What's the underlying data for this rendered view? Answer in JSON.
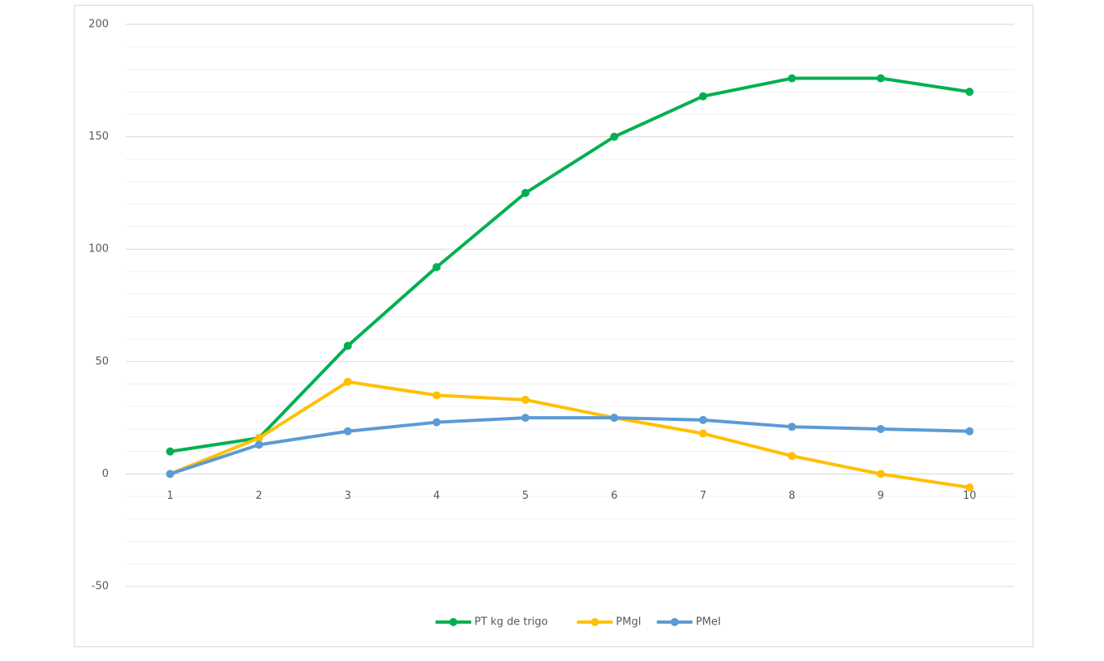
{
  "chart_data": {
    "type": "line",
    "categories": [
      "1",
      "2",
      "3",
      "4",
      "5",
      "6",
      "7",
      "8",
      "9",
      "10"
    ],
    "series": [
      {
        "name": "PT kg de trigo",
        "color": "#00b050",
        "values": [
          10,
          16,
          57,
          92,
          125,
          150,
          168,
          176,
          176,
          170
        ]
      },
      {
        "name": "PMgI",
        "color": "#ffc000",
        "values": [
          0,
          16,
          41,
          35,
          33,
          25,
          18,
          8,
          0,
          -6
        ]
      },
      {
        "name": "PMeI",
        "color": "#5b9bd5",
        "values": [
          0,
          13,
          19,
          23,
          25,
          25,
          24,
          21,
          20,
          19
        ]
      }
    ],
    "ylim": [
      -50,
      200
    ],
    "yticks": [
      -50,
      0,
      50,
      100,
      150,
      200
    ],
    "minor_yticks": [
      -40,
      -30,
      -20,
      -10,
      10,
      20,
      30,
      40,
      60,
      70,
      80,
      90,
      110,
      120,
      130,
      140,
      160,
      170,
      180,
      190
    ],
    "grid": true,
    "legend": "bottom"
  }
}
